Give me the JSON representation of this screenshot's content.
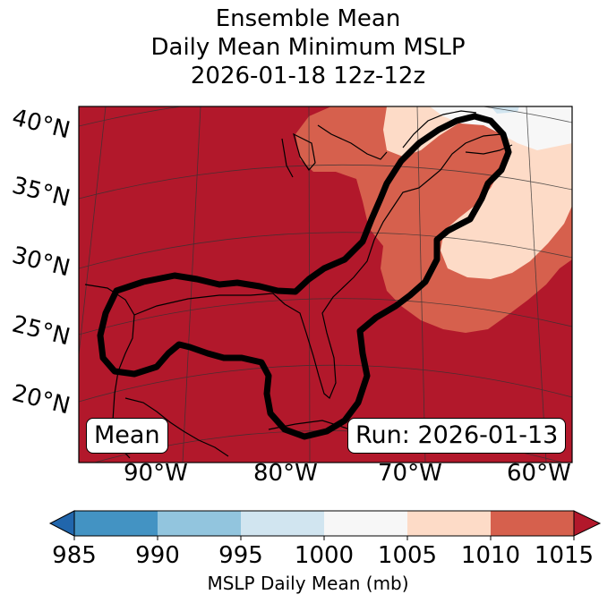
{
  "title": {
    "line1": "Ensemble Mean",
    "line2": "Daily Mean Minimum MSLP",
    "line3": "2026-01-18 12z-12z"
  },
  "map": {
    "lat_labels": [
      "40°N",
      "35°N",
      "30°N",
      "25°N",
      "20°N"
    ],
    "lon_labels": [
      "90°W",
      "80°W",
      "70°W",
      "60°W"
    ],
    "mean_label": "Mean",
    "run_label": "Run: 2026-01-13",
    "colors": {
      "1010_1015": "#b2182b",
      "1005_1010": "#d6604d",
      "1000_1005": "#fddbc7",
      "995_1000": "#f7f7f7",
      "990_995": "#d1e5f0"
    }
  },
  "colorbar": {
    "ticks": [
      "985",
      "990",
      "995",
      "1000",
      "1005",
      "1010",
      "1015"
    ],
    "colors": [
      "#4393c3",
      "#92c5de",
      "#d1e5f0",
      "#f7f7f7",
      "#fddbc7",
      "#d6604d"
    ],
    "under_color": "#2166ac",
    "over_color": "#b2182b",
    "label": "MSLP Daily Mean (mb)"
  }
}
